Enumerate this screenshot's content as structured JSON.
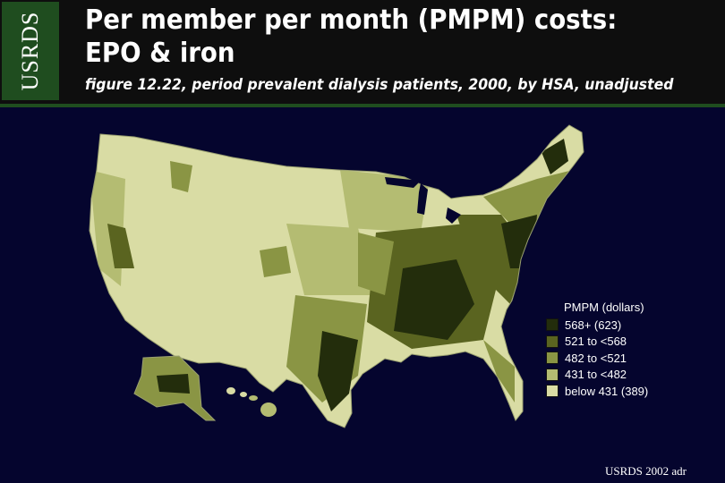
{
  "header": {
    "logo": "USRDS",
    "title": "Per member per month (PMPM) costs:\nEPO & iron",
    "subtitle": "figure 12.22, period prevalent dialysis patients, 2000, by HSA, unadjusted"
  },
  "legend": {
    "title": "PMPM (dollars)",
    "items": [
      {
        "label": "568+ (623)",
        "color": "#232d0c"
      },
      {
        "label": "521 to <568",
        "color": "#5a6420"
      },
      {
        "label": "482 to <521",
        "color": "#8a9544"
      },
      {
        "label": "431 to <482",
        "color": "#b4bc72"
      },
      {
        "label": "below 431 (389)",
        "color": "#d9dca4"
      }
    ]
  },
  "footer": "USRDS 2002 adr"
}
